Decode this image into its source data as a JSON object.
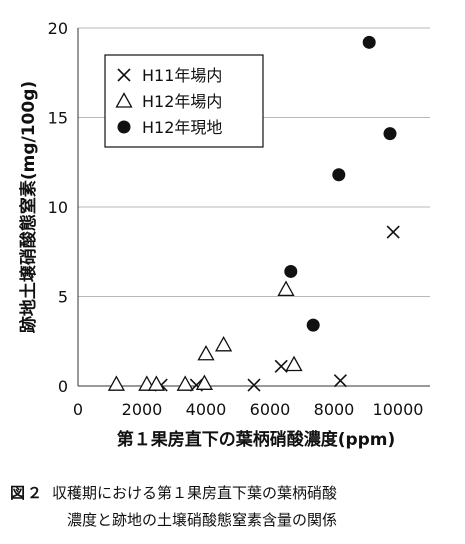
{
  "chart_data": {
    "type": "scatter",
    "xlabel": "第１果房直下の葉柄硝酸濃度(ppm)",
    "ylabel": "跡地土壌硝酸態窒素(mg/100g)",
    "xlim": [
      0,
      11000
    ],
    "ylim": [
      0,
      20
    ],
    "xticks": [
      0,
      2000,
      4000,
      6000,
      8000,
      10000
    ],
    "yticks": [
      0,
      5,
      10,
      15,
      20
    ],
    "grid": "horizontal",
    "legend_position": "top-left",
    "series": [
      {
        "name": "H11年場内",
        "marker": "cross",
        "points": [
          {
            "x": 2600,
            "y": 0.05
          },
          {
            "x": 3700,
            "y": 0.05
          },
          {
            "x": 5500,
            "y": 0.05
          },
          {
            "x": 6350,
            "y": 1.1
          },
          {
            "x": 8200,
            "y": 0.3
          },
          {
            "x": 9850,
            "y": 8.6
          }
        ]
      },
      {
        "name": "H12年場内",
        "marker": "triangle",
        "points": [
          {
            "x": 1200,
            "y": 0.1
          },
          {
            "x": 2150,
            "y": 0.1
          },
          {
            "x": 2450,
            "y": 0.1
          },
          {
            "x": 3350,
            "y": 0.1
          },
          {
            "x": 3950,
            "y": 0.15
          },
          {
            "x": 4000,
            "y": 1.8
          },
          {
            "x": 4550,
            "y": 2.3
          },
          {
            "x": 6500,
            "y": 5.4
          },
          {
            "x": 6750,
            "y": 1.2
          }
        ]
      },
      {
        "name": "H12年現地",
        "marker": "circle",
        "points": [
          {
            "x": 6650,
            "y": 6.4
          },
          {
            "x": 7350,
            "y": 3.4
          },
          {
            "x": 8150,
            "y": 11.8
          },
          {
            "x": 9100,
            "y": 19.2
          },
          {
            "x": 9750,
            "y": 14.1
          }
        ]
      }
    ]
  },
  "caption": {
    "label": "図２",
    "line1": "収穫期における第１果房直下葉の葉柄硝酸",
    "line2": "濃度と跡地の土壌硝酸態窒素含量の関係"
  },
  "colors": {
    "marker": "#111111",
    "grid": "#b8b8b8",
    "axis": "#333333"
  }
}
